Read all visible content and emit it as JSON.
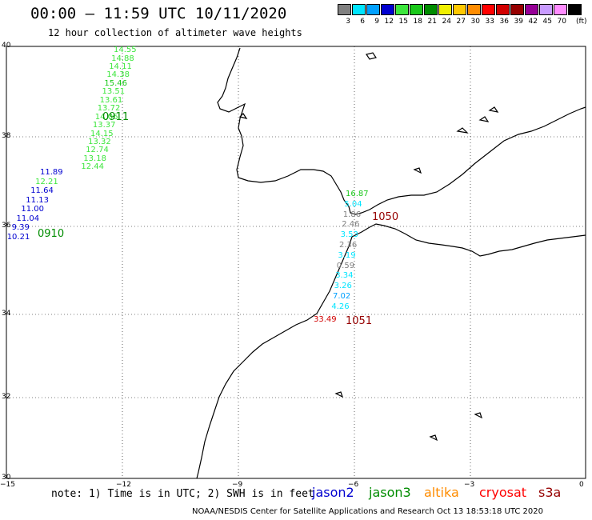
{
  "header": {
    "title": "00:00 – 11:59 UTC 10/11/2020",
    "subtitle": "12 hour collection of altimeter wave heights"
  },
  "legend": {
    "unit": "(ft)",
    "bins": [
      {
        "label": "3",
        "color": "#808080"
      },
      {
        "label": "6",
        "color": "#00e5ff"
      },
      {
        "label": "9",
        "color": "#00a0ff"
      },
      {
        "label": "12",
        "color": "#0000d0"
      },
      {
        "label": "15",
        "color": "#3ce63c"
      },
      {
        "label": "18",
        "color": "#19c819"
      },
      {
        "label": "21",
        "color": "#008c00"
      },
      {
        "label": "24",
        "color": "#f0f000"
      },
      {
        "label": "27",
        "color": "#ffc800"
      },
      {
        "label": "30",
        "color": "#ff8c00"
      },
      {
        "label": "33",
        "color": "#ff0000"
      },
      {
        "label": "36",
        "color": "#d20000"
      },
      {
        "label": "39",
        "color": "#960000"
      },
      {
        "label": "42",
        "color": "#960096"
      },
      {
        "label": "45",
        "color": "#c89bff"
      },
      {
        "label": "70",
        "color": "#ff8cff"
      },
      {
        "label": "",
        "color": "#000000"
      }
    ]
  },
  "axes": {
    "lat_labels": [
      "40",
      "38",
      "36",
      "34",
      "32",
      "30"
    ],
    "lon_labels": [
      "−15",
      "−12",
      "−9",
      "−6",
      "−3",
      "0"
    ]
  },
  "footer": {
    "note": "note: 1) Time is in UTC; 2) SWH is in feet",
    "satellites": [
      {
        "name": "jason2",
        "color": "#0000d0"
      },
      {
        "name": "jason3",
        "color": "#008c00"
      },
      {
        "name": "altika",
        "color": "#ff8c00"
      },
      {
        "name": "cryosat",
        "color": "#ff0000"
      },
      {
        "name": "s3a",
        "color": "#960000"
      }
    ],
    "credit": "NOAA/NESDIS Center for Satellite Applications and Research    Oct 13 18:53:18 UTC 2020"
  },
  "tracks": [
    {
      "id": "0911",
      "label_color": "#008c00",
      "observations": [
        {
          "value": "14.55",
          "color": "#3ce63c"
        },
        {
          "value": "14.88",
          "color": "#3ce63c"
        },
        {
          "value": "14.11",
          "color": "#3ce63c"
        },
        {
          "value": "14.38",
          "color": "#3ce63c"
        },
        {
          "value": "15.46",
          "color": "#19c819"
        },
        {
          "value": "13.51",
          "color": "#3ce63c"
        },
        {
          "value": "13.61",
          "color": "#3ce63c"
        },
        {
          "value": "13.72",
          "color": "#3ce63c"
        },
        {
          "value": "14.06",
          "color": "#3ce63c"
        },
        {
          "value": "13.37",
          "color": "#3ce63c"
        },
        {
          "value": "14.15",
          "color": "#3ce63c"
        },
        {
          "value": "13.32",
          "color": "#3ce63c"
        },
        {
          "value": "12.74",
          "color": "#3ce63c"
        },
        {
          "value": "13.18",
          "color": "#3ce63c"
        },
        {
          "value": "12.44",
          "color": "#3ce63c"
        }
      ]
    },
    {
      "id": "0910",
      "label_color": "#008c00",
      "observations": [
        {
          "value": "11.89",
          "color": "#0000d0"
        },
        {
          "value": "12.21",
          "color": "#3ce63c"
        },
        {
          "value": "11.64",
          "color": "#0000d0"
        },
        {
          "value": "11.13",
          "color": "#0000d0"
        },
        {
          "value": "11.00",
          "color": "#0000d0"
        },
        {
          "value": "11.04",
          "color": "#0000d0"
        },
        {
          "value": "9.39",
          "color": "#0000d0"
        },
        {
          "value": "10.21",
          "color": "#0000d0"
        }
      ]
    },
    {
      "id": "1050",
      "label_color": "#960000",
      "observations": [
        {
          "value": "16.87",
          "color": "#19c819"
        },
        {
          "value": "5.04",
          "color": "#00e5ff"
        },
        {
          "value": "1.86",
          "color": "#808080"
        },
        {
          "value": "2.46",
          "color": "#808080"
        },
        {
          "value": "3.53",
          "color": "#00e5ff"
        },
        {
          "value": "2.36",
          "color": "#808080"
        },
        {
          "value": "3.19",
          "color": "#00e5ff"
        },
        {
          "value": "0.59",
          "color": "#808080"
        },
        {
          "value": "3.34",
          "color": "#00e5ff"
        },
        {
          "value": "3.26",
          "color": "#00e5ff"
        },
        {
          "value": "7.02",
          "color": "#00a0ff"
        },
        {
          "value": "4.26",
          "color": "#00e5ff"
        }
      ]
    },
    {
      "id": "1051",
      "label_color": "#960000",
      "observations": [
        {
          "value": "33.49",
          "color": "#d20000"
        }
      ]
    }
  ]
}
